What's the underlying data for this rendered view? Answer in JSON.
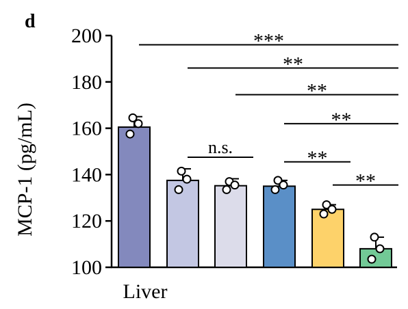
{
  "panel_label": "d",
  "chart_data": {
    "type": "bar",
    "title": "",
    "xlabel": "Liver",
    "ylabel": "MCP-1 (pg/mL)",
    "ylim": [
      100,
      200
    ],
    "yticks": [
      100,
      120,
      140,
      160,
      180,
      200
    ],
    "categories": [
      "",
      "",
      "",
      "",
      "",
      ""
    ],
    "values": [
      160.5,
      137.5,
      135.2,
      135.0,
      125.0,
      108.0
    ],
    "errors": [
      4.5,
      5.0,
      3.0,
      2.5,
      2.0,
      5.0
    ],
    "points": [
      [
        164.5,
        157.5,
        162.0
      ],
      [
        141.5,
        133.5,
        138.0
      ],
      [
        137.0,
        133.5,
        135.5
      ],
      [
        137.5,
        133.5,
        135.5
      ],
      [
        127.0,
        123.0,
        125.0
      ],
      [
        113.0,
        103.5,
        108.0
      ]
    ],
    "colors": [
      "#8389bd",
      "#c3c7e3",
      "#dcdcea",
      "#5a8fc7",
      "#fdd26a",
      "#72c996"
    ],
    "significance": [
      {
        "from": 0,
        "to": 5,
        "label": "***",
        "y": 196
      },
      {
        "from": 1,
        "to": 5,
        "label": "**",
        "y": 186
      },
      {
        "from": 2,
        "to": 5,
        "label": "**",
        "y": 174.5
      },
      {
        "from": 3,
        "to": 5,
        "label": "**",
        "y": 162
      },
      {
        "from": 3,
        "to": 4,
        "label": "**",
        "y": 145.5
      },
      {
        "from": 4,
        "to": 5,
        "label": "**",
        "y": 135.5
      },
      {
        "from": 1,
        "to": 2,
        "label": "n.s.",
        "y": 147.5
      }
    ],
    "grid": false,
    "legend": "none"
  }
}
